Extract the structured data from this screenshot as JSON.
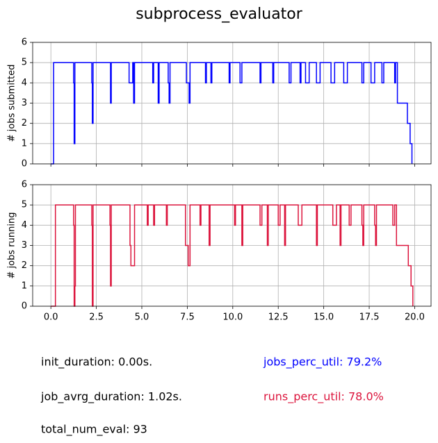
{
  "title": "subprocess_evaluator",
  "chart_data": [
    {
      "type": "step",
      "ylabel": "# jobs submitted",
      "color": "#0000ff",
      "grid": true,
      "show_xticklabels": false,
      "xlim": [
        -1,
        20.9
      ],
      "ylim": [
        0,
        6
      ],
      "xticks": [
        {
          "value": 0,
          "label": "0.0"
        },
        {
          "value": 2.5,
          "label": "2.5"
        },
        {
          "value": 5,
          "label": "5.0"
        },
        {
          "value": 7.5,
          "label": "7.5"
        },
        {
          "value": 10,
          "label": "10.0"
        },
        {
          "value": 12.5,
          "label": "12.5"
        },
        {
          "value": 15,
          "label": "15.0"
        },
        {
          "value": 17.5,
          "label": "17.5"
        },
        {
          "value": 20,
          "label": "20.0"
        }
      ],
      "yticks": [
        0,
        1,
        2,
        3,
        4,
        5,
        6
      ],
      "x": [
        0,
        0.15,
        1.25,
        1.28,
        1.32,
        2.25,
        2.28,
        2.32,
        3.28,
        3.32,
        4.3,
        4.5,
        4.55,
        4.6,
        5.6,
        5.65,
        5.9,
        5.95,
        6.45,
        6.5,
        6.55,
        7.45,
        7.6,
        7.65,
        8.5,
        8.55,
        8.8,
        8.85,
        9.8,
        9.85,
        10.4,
        10.5,
        11.5,
        11.55,
        12.2,
        12.25,
        13.1,
        13.2,
        13.7,
        13.75,
        14.0,
        14.2,
        14.6,
        14.8,
        15.4,
        15.6,
        16.1,
        16.3,
        17.1,
        17.2,
        17.6,
        17.8,
        18.2,
        18.3,
        18.9,
        18.95,
        19.05,
        19.6,
        19.75,
        19.85
      ],
      "values": [
        0,
        5,
        4,
        1,
        5,
        4,
        2,
        5,
        3,
        5,
        4,
        5,
        3,
        5,
        4,
        5,
        3,
        5,
        4,
        3,
        5,
        4,
        3,
        5,
        4,
        5,
        4,
        5,
        4,
        5,
        4,
        5,
        4,
        5,
        4,
        5,
        4,
        5,
        4,
        5,
        4,
        5,
        4,
        5,
        4,
        5,
        4,
        5,
        4,
        5,
        4,
        5,
        4,
        5,
        4,
        5,
        3,
        2,
        1,
        0
      ]
    },
    {
      "type": "step",
      "ylabel": "# jobs running",
      "color": "#dc143c",
      "grid": true,
      "show_xticklabels": true,
      "xlim": [
        -1,
        20.9
      ],
      "ylim": [
        0,
        6
      ],
      "xticks": [
        {
          "value": 0,
          "label": "0.0"
        },
        {
          "value": 2.5,
          "label": "2.5"
        },
        {
          "value": 5,
          "label": "5.0"
        },
        {
          "value": 7.5,
          "label": "7.5"
        },
        {
          "value": 10,
          "label": "10.0"
        },
        {
          "value": 12.5,
          "label": "12.5"
        },
        {
          "value": 15,
          "label": "15.0"
        },
        {
          "value": 17.5,
          "label": "17.5"
        },
        {
          "value": 20,
          "label": "20.0"
        }
      ],
      "yticks": [
        0,
        1,
        2,
        3,
        4,
        5,
        6
      ],
      "x": [
        0,
        0.25,
        1.25,
        1.28,
        1.32,
        1.35,
        2.25,
        2.28,
        2.32,
        3.25,
        3.28,
        3.32,
        4.35,
        4.4,
        4.6,
        5.3,
        5.35,
        5.65,
        5.7,
        6.35,
        6.4,
        7.4,
        7.55,
        7.65,
        8.2,
        8.25,
        8.7,
        8.75,
        10.1,
        10.15,
        10.5,
        10.55,
        11.5,
        11.6,
        11.9,
        11.95,
        12.5,
        12.6,
        12.85,
        12.9,
        13.6,
        13.8,
        14.6,
        14.65,
        15.5,
        15.7,
        15.9,
        15.95,
        16.4,
        16.5,
        17.1,
        17.15,
        17.2,
        17.8,
        17.85,
        17.9,
        18.8,
        18.9,
        19.0,
        19.65,
        19.8,
        19.9
      ],
      "values": [
        0,
        5,
        4,
        0,
        1,
        5,
        4,
        0,
        5,
        4,
        1,
        5,
        3,
        2,
        5,
        4,
        5,
        4,
        5,
        4,
        5,
        3,
        2,
        5,
        4,
        5,
        3,
        5,
        4,
        5,
        3,
        5,
        4,
        5,
        3,
        5,
        4,
        5,
        3,
        5,
        4,
        5,
        3,
        5,
        4,
        5,
        3,
        5,
        4,
        5,
        4,
        3,
        5,
        4,
        3,
        5,
        4,
        5,
        3,
        2,
        1,
        0
      ]
    }
  ],
  "annotations": [
    {
      "text": "init_duration: 0.00s.",
      "color": "#000000"
    },
    {
      "text": "job_avrg_duration: 1.02s.",
      "color": "#000000"
    },
    {
      "text": "total_num_eval: 93",
      "color": "#000000"
    },
    {
      "text": "jobs_perc_util: 79.2%",
      "color": "#0000ff"
    },
    {
      "text": "runs_perc_util: 78.0%",
      "color": "#dc143c"
    }
  ]
}
